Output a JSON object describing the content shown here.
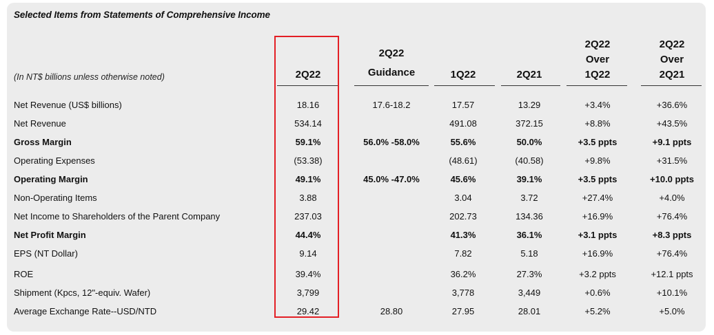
{
  "title": "Selected Items from Statements of Comprehensive Income",
  "note": "(In NT$ billions unless otherwise noted)",
  "headers": [
    {
      "lines": [
        "2Q22"
      ]
    },
    {
      "lines": [
        "2Q22",
        "Guidance"
      ]
    },
    {
      "lines": [
        "1Q22"
      ]
    },
    {
      "lines": [
        "2Q21"
      ]
    },
    {
      "lines": [
        "2Q22",
        "Over",
        "1Q22"
      ]
    },
    {
      "lines": [
        "2Q22",
        "Over",
        "2Q21"
      ]
    }
  ],
  "rows": [
    {
      "label": "Net Revenue (US$ billions)",
      "bold": false,
      "cells": [
        "18.16",
        "17.6-18.2",
        "17.57",
        "13.29",
        "+3.4%",
        "+36.6%"
      ]
    },
    {
      "label": "Net Revenue",
      "bold": false,
      "cells": [
        "534.14",
        "",
        "491.08",
        "372.15",
        "+8.8%",
        "+43.5%"
      ]
    },
    {
      "label": "Gross Margin",
      "bold": true,
      "cells": [
        "59.1%",
        "56.0% -58.0%",
        "55.6%",
        "50.0%",
        "+3.5 ppts",
        "+9.1 ppts"
      ]
    },
    {
      "label": "Operating Expenses",
      "bold": false,
      "cells": [
        "(53.38)",
        "",
        "(48.61)",
        "(40.58)",
        "+9.8%",
        "+31.5%"
      ]
    },
    {
      "label": "Operating Margin",
      "bold": true,
      "cells": [
        "49.1%",
        "45.0% -47.0%",
        "45.6%",
        "39.1%",
        "+3.5 ppts",
        "+10.0 ppts"
      ]
    },
    {
      "label": "Non-Operating Items",
      "bold": false,
      "cells": [
        "3.88",
        "",
        "3.04",
        "3.72",
        "+27.4%",
        "+4.0%"
      ]
    },
    {
      "label": "Net Income to Shareholders of the Parent Company",
      "bold": false,
      "cells": [
        "237.03",
        "",
        "202.73",
        "134.36",
        "+16.9%",
        "+76.4%"
      ]
    },
    {
      "label": "Net Profit Margin",
      "bold": true,
      "cells": [
        "44.4%",
        "",
        "41.3%",
        "36.1%",
        "+3.1 ppts",
        "+8.3 ppts"
      ]
    },
    {
      "label": "EPS (NT Dollar)",
      "bold": false,
      "cells": [
        "9.14",
        "",
        "7.82",
        "5.18",
        "+16.9%",
        "+76.4%"
      ]
    },
    {
      "label": "ROE",
      "bold": false,
      "cells": [
        "39.4%",
        "",
        "36.2%",
        "27.3%",
        "+3.2 ppts",
        "+12.1 ppts"
      ]
    },
    {
      "label": "Shipment (Kpcs, 12\"-equiv. Wafer)",
      "bold": false,
      "cells": [
        "3,799",
        "",
        "3,778",
        "3,449",
        "+0.6%",
        "+10.1%"
      ]
    },
    {
      "label": "Average Exchange Rate--USD/NTD",
      "bold": false,
      "cells": [
        "29.42",
        "28.80",
        "27.95",
        "28.01",
        "+5.2%",
        "+5.0%"
      ]
    }
  ],
  "highlight_color": "#e31e24"
}
